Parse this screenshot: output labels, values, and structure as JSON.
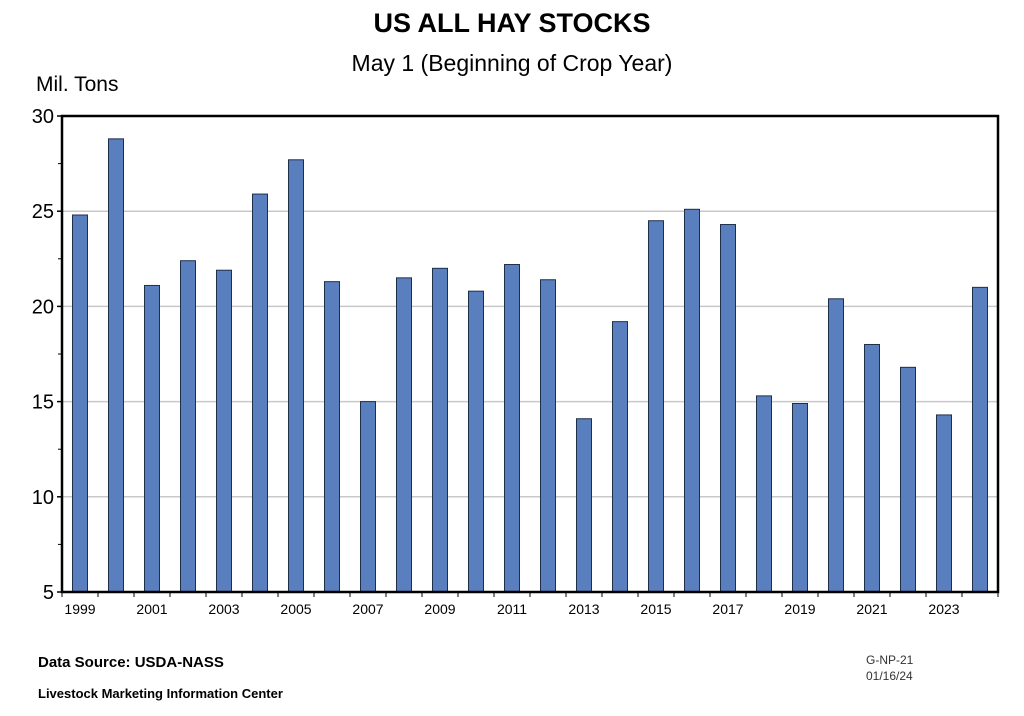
{
  "chart_data": {
    "type": "bar",
    "title": "US ALL HAY STOCKS",
    "subtitle": "May 1 (Beginning of Crop Year)",
    "ylabel": "Mil. Tons",
    "xlabel": "",
    "ylim": [
      5,
      30
    ],
    "yticks": [
      5,
      10,
      15,
      20,
      25,
      30
    ],
    "grid": true,
    "bar_color": "#5a7fbf",
    "categories": [
      "1999",
      "2000",
      "2001",
      "2002",
      "2003",
      "2004",
      "2005",
      "2006",
      "2007",
      "2008",
      "2009",
      "2010",
      "2011",
      "2012",
      "2013",
      "2014",
      "2015",
      "2016",
      "2017",
      "2018",
      "2019",
      "2020",
      "2021",
      "2022",
      "2023",
      "2024"
    ],
    "xtick_labels": [
      "1999",
      "2001",
      "2003",
      "2005",
      "2007",
      "2009",
      "2011",
      "2013",
      "2015",
      "2017",
      "2019",
      "2021",
      "2023"
    ],
    "values": [
      24.8,
      28.8,
      21.1,
      22.4,
      21.9,
      25.9,
      27.7,
      21.3,
      15.0,
      21.5,
      22.0,
      20.8,
      22.2,
      21.4,
      14.1,
      19.2,
      24.5,
      25.1,
      24.3,
      15.3,
      14.9,
      20.4,
      18.0,
      16.8,
      14.3,
      21.0
    ]
  },
  "footer": {
    "source": "Data Source:  USDA-NASS",
    "organization": "Livestock Marketing Information Center",
    "chart_code": "G-NP-21",
    "date": "01/16/24"
  }
}
